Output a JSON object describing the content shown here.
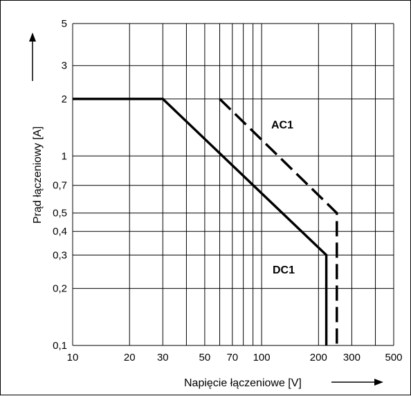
{
  "chart_data": {
    "type": "line",
    "x_scale": "log",
    "y_scale": "log",
    "xlim": [
      10,
      500
    ],
    "ylim": [
      0.1,
      5
    ],
    "xlabel": "Napięcie łączeniowe [V]",
    "ylabel": "Prąd łączeniowy [A]",
    "x_ticks": [
      10,
      20,
      30,
      50,
      70,
      100,
      200,
      300,
      500
    ],
    "x_tick_labels": [
      "10",
      "20",
      "30",
      "50",
      "70",
      "100",
      "200",
      "300",
      "500"
    ],
    "y_ticks": [
      0.1,
      0.2,
      0.3,
      0.4,
      0.5,
      0.7,
      1,
      2,
      3,
      5
    ],
    "y_tick_labels": [
      "0,1",
      "0,2",
      "0,3",
      "0,4",
      "0,5",
      "0,7",
      "1",
      "2",
      "3",
      "5"
    ],
    "x_grid": [
      10,
      20,
      30,
      40,
      50,
      60,
      70,
      80,
      90,
      100,
      200,
      300,
      400,
      500
    ],
    "y_grid": [
      0.1,
      0.2,
      0.3,
      0.4,
      0.5,
      0.7,
      1,
      2,
      3,
      5
    ],
    "grid": true,
    "series": [
      {
        "name": "DC1",
        "style": "solid",
        "color": "#000000",
        "points": [
          [
            10,
            2
          ],
          [
            30,
            2
          ],
          [
            220,
            0.3
          ],
          [
            220,
            0.1
          ]
        ]
      },
      {
        "name": "AC1",
        "style": "dashed",
        "color": "#000000",
        "points": [
          [
            60,
            2
          ],
          [
            250,
            0.5
          ],
          [
            250,
            0.1
          ]
        ]
      }
    ],
    "labels": [
      {
        "text": "AC1",
        "x": 150,
        "y": 1.4
      },
      {
        "text": "DC1",
        "x": 150,
        "y": 0.24
      }
    ]
  }
}
